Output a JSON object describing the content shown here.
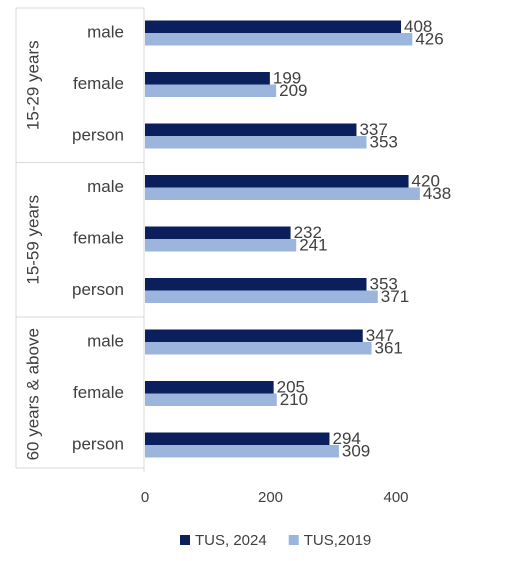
{
  "chart_data": {
    "type": "bar",
    "orientation": "horizontal",
    "groups": [
      {
        "label": "15-29 years",
        "categories": [
          "male",
          "female",
          "person"
        ]
      },
      {
        "label": "15-59 years",
        "categories": [
          "male",
          "female",
          "person"
        ]
      },
      {
        "label": "60 years & above",
        "categories": [
          "male",
          "female",
          "person"
        ]
      }
    ],
    "series": [
      {
        "name": "TUS, 2024",
        "color": "#0b1f5c",
        "values": [
          408,
          199,
          337,
          420,
          232,
          353,
          347,
          205,
          294
        ]
      },
      {
        "name": "TUS,2019",
        "color": "#9bb5dc",
        "values": [
          426,
          209,
          353,
          438,
          241,
          371,
          361,
          210,
          309
        ]
      }
    ],
    "xlim": [
      0,
      400
    ],
    "xticks": [
      0,
      200,
      400
    ],
    "xtick_labels": [
      "0",
      "200",
      "400"
    ],
    "grid": false,
    "legend_position": "bottom",
    "title": "",
    "xlabel": "",
    "ylabel": ""
  }
}
